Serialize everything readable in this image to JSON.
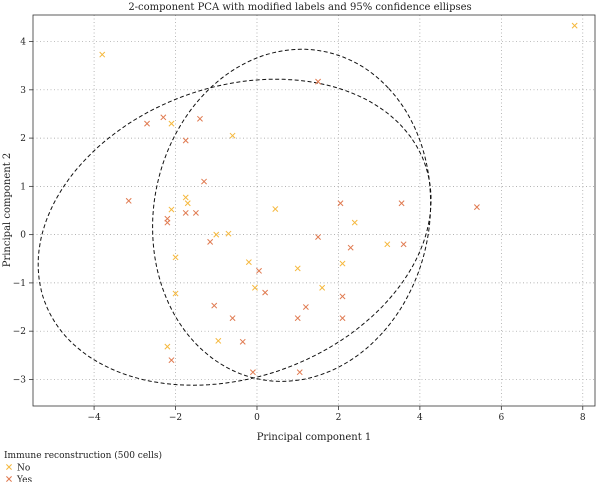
{
  "chart_data": {
    "type": "scatter",
    "title": "2-component PCA with modified labels and 95% confidence ellipses",
    "xlabel": "Principal component 1",
    "ylabel": "Principal component 2",
    "xlim": [
      -5.5,
      8.3
    ],
    "ylim": [
      -3.55,
      4.55
    ],
    "xticks": [
      -4,
      -2,
      0,
      2,
      4,
      6,
      8
    ],
    "yticks": [
      -3,
      -2,
      -1,
      0,
      1,
      2,
      3,
      4
    ],
    "xtick_labels": [
      "−4",
      "−2",
      "0",
      "2",
      "4",
      "6",
      "8"
    ],
    "ytick_labels": [
      "−3",
      "−2",
      "−1",
      "0",
      "1",
      "2",
      "3",
      "4"
    ],
    "grid": true,
    "legend": {
      "title": "Immune reconstruction (500 cells)",
      "placement": "bottom-left"
    },
    "series": [
      {
        "name": "No",
        "color": "#f5b83d",
        "marker": "x",
        "points": [
          [
            -3.8,
            3.73
          ],
          [
            -2.1,
            2.3
          ],
          [
            -0.6,
            2.05
          ],
          [
            -2.1,
            0.52
          ],
          [
            -1.75,
            0.77
          ],
          [
            -1.7,
            0.65
          ],
          [
            -1.0,
            0.0
          ],
          [
            -0.7,
            0.02
          ],
          [
            0.45,
            0.53
          ],
          [
            -2.0,
            -0.47
          ],
          [
            -2.0,
            -1.22
          ],
          [
            -2.2,
            -2.32
          ],
          [
            -0.2,
            -0.57
          ],
          [
            -0.05,
            -1.1
          ],
          [
            1.0,
            -0.7
          ],
          [
            1.6,
            -1.1
          ],
          [
            2.1,
            -0.6
          ],
          [
            2.4,
            0.25
          ],
          [
            3.2,
            -0.2
          ],
          [
            -0.95,
            -2.2
          ],
          [
            7.8,
            4.33
          ]
        ]
      },
      {
        "name": "Yes",
        "color": "#e07a50",
        "marker": "x",
        "points": [
          [
            -3.15,
            0.7
          ],
          [
            -2.7,
            2.3
          ],
          [
            -2.3,
            2.43
          ],
          [
            -1.4,
            2.4
          ],
          [
            -1.75,
            1.95
          ],
          [
            -1.3,
            1.1
          ],
          [
            -1.5,
            0.45
          ],
          [
            -1.75,
            0.45
          ],
          [
            -2.2,
            0.25
          ],
          [
            -2.2,
            0.33
          ],
          [
            -1.15,
            -0.15
          ],
          [
            1.5,
            3.17
          ],
          [
            1.5,
            -0.05
          ],
          [
            0.05,
            -0.75
          ],
          [
            0.2,
            -1.2
          ],
          [
            1.2,
            -1.5
          ],
          [
            -1.05,
            -1.47
          ],
          [
            -0.6,
            -1.73
          ],
          [
            1.0,
            -1.73
          ],
          [
            2.1,
            -1.73
          ],
          [
            2.1,
            -1.28
          ],
          [
            2.3,
            -0.27
          ],
          [
            2.05,
            0.65
          ],
          [
            3.55,
            0.65
          ],
          [
            3.6,
            -0.2
          ],
          [
            5.4,
            0.57
          ],
          [
            -0.35,
            -2.22
          ],
          [
            -0.1,
            -2.85
          ],
          [
            1.05,
            -2.85
          ],
          [
            -2.1,
            -2.6
          ]
        ]
      }
    ],
    "ellipses": [
      {
        "name": "No",
        "cx": -0.55,
        "cy": 0.05,
        "rx": 4.9,
        "ry": 3.05,
        "angle_deg": 13
      },
      {
        "name": "Yes",
        "cx": 0.85,
        "cy": 0.4,
        "rx": 3.55,
        "ry": 3.3,
        "angle_deg": 48
      }
    ]
  }
}
